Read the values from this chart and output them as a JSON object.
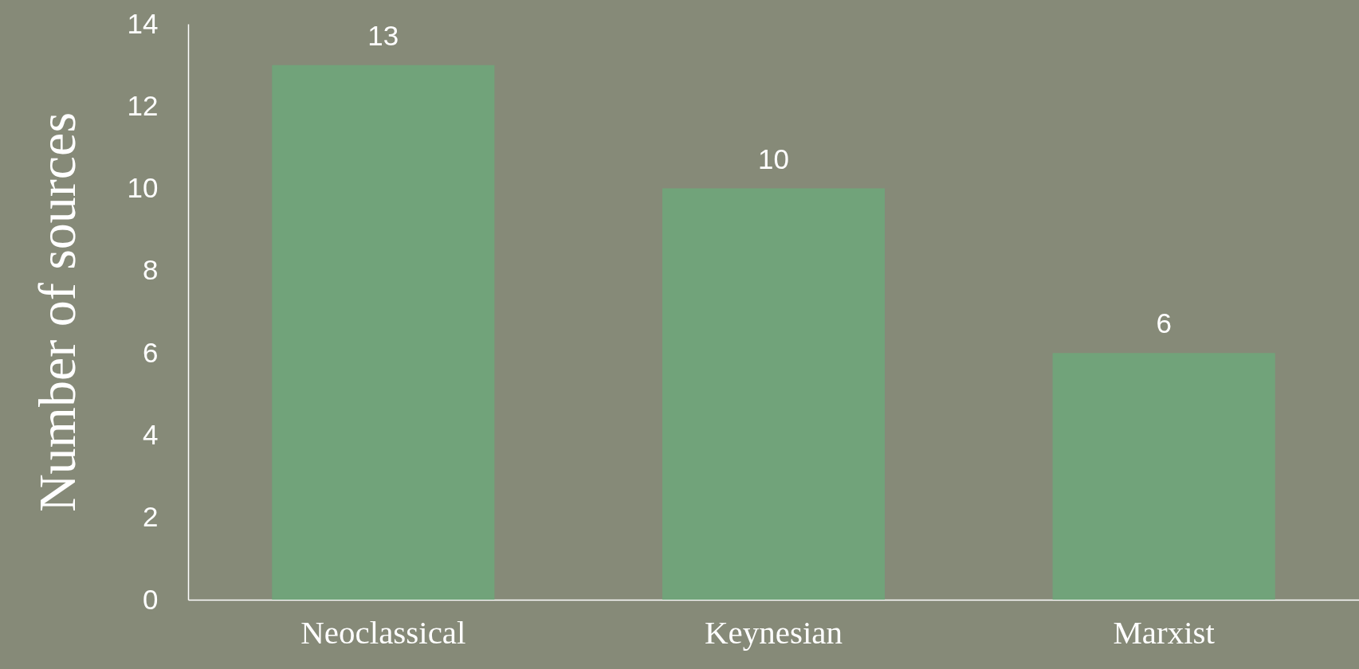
{
  "chart_data": {
    "type": "bar",
    "ylabel": "Number of sources",
    "categories": [
      "Neoclassical",
      "Keynesian",
      "Marxist"
    ],
    "values": [
      13,
      10,
      6
    ],
    "color": "#71a37a",
    "ylim": [
      0,
      14
    ],
    "yticks": [
      0,
      2,
      4,
      6,
      8,
      10,
      12,
      14
    ],
    "grid": false,
    "data_labels": true
  }
}
